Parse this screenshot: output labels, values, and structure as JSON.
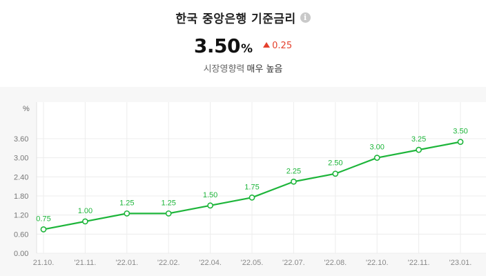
{
  "header": {
    "title": "한국 중앙은행 기준금리",
    "info_icon": "info-icon",
    "rate_value": "3.50",
    "rate_unit": "%",
    "change": "0.25",
    "change_direction": "up",
    "change_color": "#e5412d",
    "impact_label": "시장영향력",
    "impact_value": "매우 높음"
  },
  "chart_data": {
    "type": "line",
    "ylabel": "%",
    "ylim": [
      0,
      3.6
    ],
    "yticks": [
      "0.00",
      "0.60",
      "1.20",
      "1.80",
      "2.40",
      "3.00",
      "3.60"
    ],
    "x": [
      "21.10.",
      "'21.11.",
      "'22.01.",
      "'22.02.",
      "'22.04.",
      "'22.05.",
      "'22.07.",
      "'22.08.",
      "'22.10.",
      "'22.11.",
      "'23.01."
    ],
    "values": [
      0.75,
      1.0,
      1.25,
      1.25,
      1.5,
      1.75,
      2.25,
      2.5,
      3.0,
      3.25,
      3.5
    ],
    "value_labels": [
      "0.75",
      "1.00",
      "1.25",
      "1.25",
      "1.50",
      "1.75",
      "2.25",
      "2.50",
      "3.00",
      "3.25",
      "3.50"
    ],
    "line_color": "#1db53a",
    "grid": true
  }
}
